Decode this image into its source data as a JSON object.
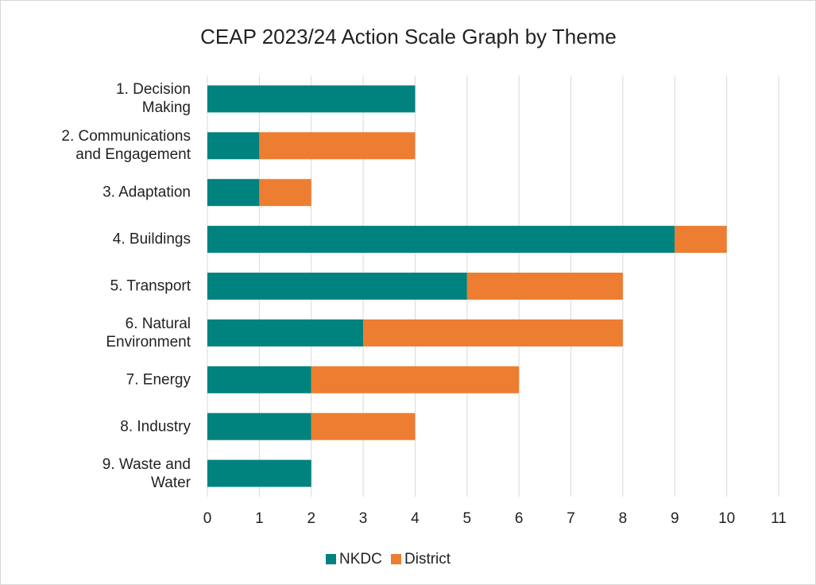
{
  "chart_data": {
    "type": "stacked_barh",
    "title": "CEAP 2023/24 Action Scale Graph by Theme",
    "categories": [
      "1. Decision\nMaking",
      "2. Communications\nand Engagement",
      "3. Adaptation",
      "4. Buildings",
      "5. Transport",
      "6. Natural\nEnvironment",
      "7. Energy",
      "8. Industry",
      "9. Waste and\nWater"
    ],
    "series": [
      {
        "name": "NKDC",
        "color": "#00827f",
        "values": [
          4,
          1,
          1,
          9,
          5,
          3,
          2,
          2,
          2
        ]
      },
      {
        "name": "District",
        "color": "#ed7d31",
        "values": [
          0,
          3,
          1,
          1,
          3,
          5,
          4,
          2,
          0
        ]
      }
    ],
    "xlim": [
      0,
      11
    ],
    "xticks": [
      0,
      1,
      2,
      3,
      4,
      5,
      6,
      7,
      8,
      9,
      10,
      11
    ],
    "grid": true,
    "legend": "bottom"
  }
}
